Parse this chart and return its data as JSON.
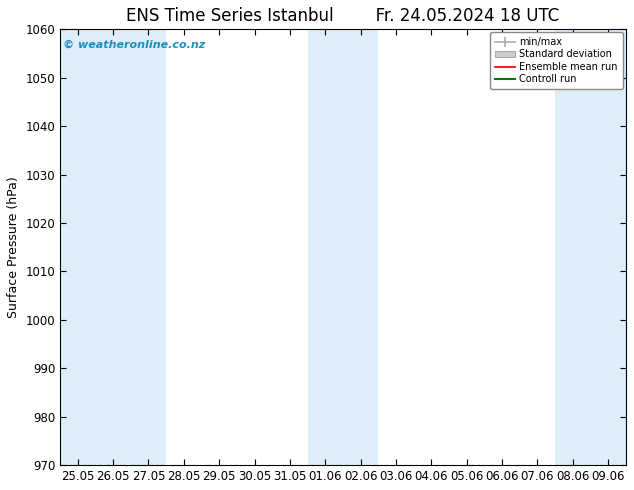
{
  "title_left": "ENS Time Series Istanbul",
  "title_right": "Fr. 24.05.2024 18 UTC",
  "ylabel": "Surface Pressure (hPa)",
  "ylim": [
    970,
    1060
  ],
  "yticks": [
    970,
    980,
    990,
    1000,
    1010,
    1020,
    1030,
    1040,
    1050,
    1060
  ],
  "xtick_labels": [
    "25.05",
    "26.05",
    "27.05",
    "28.05",
    "29.05",
    "30.05",
    "31.05",
    "01.06",
    "02.06",
    "03.06",
    "04.06",
    "05.06",
    "06.06",
    "07.06",
    "08.06",
    "09.06"
  ],
  "shaded_positions": [
    0,
    1,
    2,
    7,
    8,
    14,
    15
  ],
  "band_color": "#ddeef8",
  "background_color": "#ffffff",
  "legend_labels": [
    "min/max",
    "Standard deviation",
    "Ensemble mean run",
    "Controll run"
  ],
  "watermark": "© weatheronline.co.nz",
  "watermark_color": "#1a8fbf",
  "title_fontsize": 12,
  "tick_fontsize": 8.5,
  "ylabel_fontsize": 9
}
